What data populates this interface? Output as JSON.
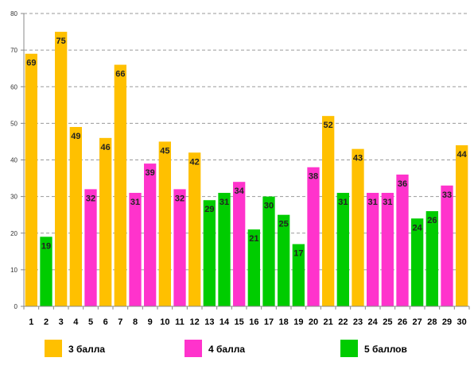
{
  "chart_data": {
    "type": "bar",
    "title": "",
    "xlabel": "",
    "ylabel": "",
    "ylim": [
      0,
      80
    ],
    "yticks": [
      0,
      10,
      20,
      30,
      40,
      50,
      60,
      70,
      80
    ],
    "grid": true,
    "legend_position": "bottom",
    "categories": [
      "1",
      "2",
      "3",
      "4",
      "5",
      "6",
      "7",
      "8",
      "9",
      "10",
      "11",
      "12",
      "13",
      "14",
      "15",
      "16",
      "17",
      "18",
      "19",
      "20",
      "21",
      "22",
      "23",
      "24",
      "25",
      "26",
      "27",
      "28",
      "29",
      "30"
    ],
    "values": [
      69,
      19,
      75,
      49,
      32,
      46,
      66,
      31,
      39,
      45,
      32,
      42,
      29,
      31,
      34,
      21,
      30,
      25,
      17,
      38,
      52,
      31,
      43,
      31,
      31,
      36,
      24,
      26,
      33,
      44
    ],
    "bar_groups": [
      "3",
      "5",
      "3",
      "3",
      "4",
      "3",
      "3",
      "4",
      "4",
      "3",
      "4",
      "3",
      "5",
      "5",
      "4",
      "5",
      "5",
      "5",
      "5",
      "4",
      "3",
      "5",
      "3",
      "4",
      "4",
      "4",
      "5",
      "5",
      "4",
      "3"
    ],
    "legend": [
      {
        "group": "3",
        "label": "3 балла",
        "color": "#FFC000"
      },
      {
        "group": "4",
        "label": "4 балла",
        "color": "#FF33CC"
      },
      {
        "group": "5",
        "label": "5 баллов",
        "color": "#00CC00"
      }
    ]
  }
}
